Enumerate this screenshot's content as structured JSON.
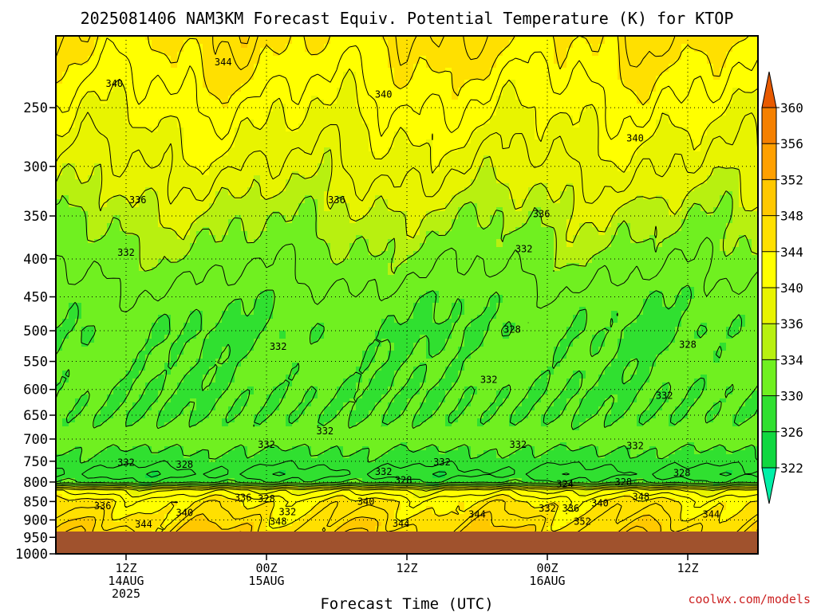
{
  "chart_data": {
    "type": "heatmap",
    "title": "2025081406 NAM3KM Forecast Equiv. Potential Temperature (K) for KTOP",
    "xlabel": "Forecast Time (UTC)",
    "ylabel": "",
    "x_ticks": [
      {
        "hours": 6,
        "lines": [
          "12Z",
          "14AUG",
          "2025"
        ]
      },
      {
        "hours": 18,
        "lines": [
          "00Z",
          "15AUG"
        ]
      },
      {
        "hours": 30,
        "lines": [
          "12Z"
        ]
      },
      {
        "hours": 42,
        "lines": [
          "00Z",
          "16AUG"
        ]
      },
      {
        "hours": 54,
        "lines": [
          "12Z"
        ]
      }
    ],
    "xlim_hours": [
      0,
      60
    ],
    "y_ticks": [
      250,
      300,
      350,
      400,
      450,
      500,
      550,
      600,
      650,
      700,
      750,
      800,
      850,
      900,
      950,
      1000
    ],
    "ylim_hpa": [
      200,
      1000
    ],
    "y_scale": "log",
    "colorbar": {
      "ticks": [
        322,
        326,
        330,
        334,
        336,
        340,
        344,
        348,
        352,
        356,
        360
      ],
      "colors": [
        "#00f0a8",
        "#10d840",
        "#30e030",
        "#70f020",
        "#b8f010",
        "#e8f400",
        "#ffff00",
        "#ffe000",
        "#ffc800",
        "#ffa000",
        "#f58000",
        "#e85a00"
      ],
      "placement": "right"
    },
    "profile": {
      "pressure": [
        200,
        250,
        300,
        350,
        400,
        450,
        500,
        550,
        600,
        650,
        700,
        750,
        780,
        800,
        820,
        850,
        880,
        900,
        950,
        1000
      ],
      "theta_e": [
        345,
        341,
        338,
        335,
        333,
        331,
        330,
        330.5,
        330,
        330,
        331,
        329,
        327,
        329,
        340,
        344,
        345,
        346,
        348,
        350
      ]
    },
    "contour_labels": [
      {
        "text": "344",
        "hours": 14.3,
        "p": 217
      },
      {
        "text": "340",
        "hours": 5,
        "p": 232
      },
      {
        "text": "340",
        "hours": 28,
        "p": 240
      },
      {
        "text": "340",
        "hours": 49.5,
        "p": 275
      },
      {
        "text": "336",
        "hours": 7,
        "p": 333
      },
      {
        "text": "336",
        "hours": 24,
        "p": 333
      },
      {
        "text": "336",
        "hours": 41.5,
        "p": 348
      },
      {
        "text": "332",
        "hours": 6,
        "p": 392
      },
      {
        "text": "332",
        "hours": 40,
        "p": 388
      },
      {
        "text": "328",
        "hours": 39,
        "p": 498
      },
      {
        "text": "328",
        "hours": 54,
        "p": 522
      },
      {
        "text": "332",
        "hours": 19,
        "p": 525
      },
      {
        "text": "332",
        "hours": 37,
        "p": 582
      },
      {
        "text": "332",
        "hours": 52,
        "p": 612
      },
      {
        "text": "332",
        "hours": 23,
        "p": 683
      },
      {
        "text": "332",
        "hours": 18,
        "p": 712
      },
      {
        "text": "332",
        "hours": 39.5,
        "p": 712
      },
      {
        "text": "332",
        "hours": 49.5,
        "p": 715
      },
      {
        "text": "332",
        "hours": 6,
        "p": 753
      },
      {
        "text": "328",
        "hours": 11,
        "p": 758
      },
      {
        "text": "332",
        "hours": 33,
        "p": 752
      },
      {
        "text": "332",
        "hours": 28,
        "p": 775
      },
      {
        "text": "328",
        "hours": 29.7,
        "p": 795
      },
      {
        "text": "324",
        "hours": 43.5,
        "p": 805
      },
      {
        "text": "328",
        "hours": 48.5,
        "p": 800
      },
      {
        "text": "328",
        "hours": 53.5,
        "p": 778
      },
      {
        "text": "348",
        "hours": 50,
        "p": 838
      },
      {
        "text": "336",
        "hours": 16,
        "p": 840
      },
      {
        "text": "328",
        "hours": 18,
        "p": 843
      },
      {
        "text": "340",
        "hours": 26.5,
        "p": 850
      },
      {
        "text": "340",
        "hours": 46.5,
        "p": 855
      },
      {
        "text": "336",
        "hours": 4,
        "p": 862
      },
      {
        "text": "340",
        "hours": 11,
        "p": 880
      },
      {
        "text": "332",
        "hours": 19.8,
        "p": 878
      },
      {
        "text": "332",
        "hours": 42,
        "p": 868
      },
      {
        "text": "336",
        "hours": 44,
        "p": 868
      },
      {
        "text": "344",
        "hours": 36,
        "p": 885
      },
      {
        "text": "344",
        "hours": 56,
        "p": 885
      },
      {
        "text": "348",
        "hours": 19,
        "p": 905
      },
      {
        "text": "344",
        "hours": 7.5,
        "p": 913
      },
      {
        "text": "344",
        "hours": 29.5,
        "p": 910
      },
      {
        "text": "352",
        "hours": 45,
        "p": 905
      },
      {
        "text": "348",
        "hours": 29.5,
        "p": 955
      }
    ]
  },
  "credit": "coolwx.com/models"
}
